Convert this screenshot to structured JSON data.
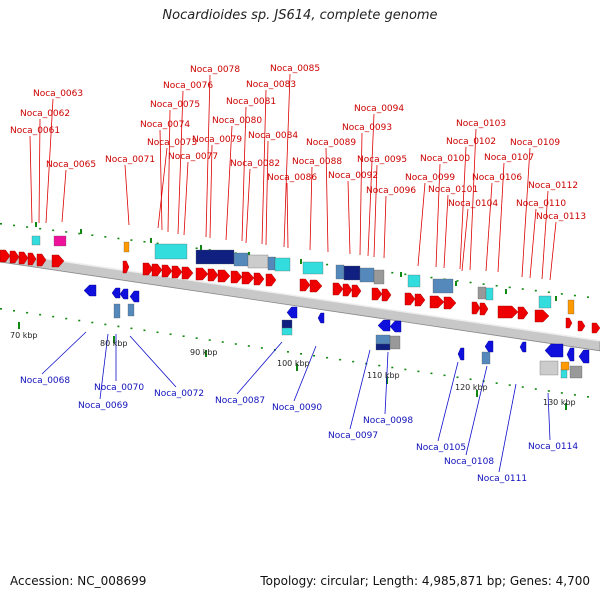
{
  "title": "Nocardioides sp. JS614, complete genome",
  "footer": {
    "accession": "Accession: NC_008699",
    "summary": "Topology: circular; Length: 4,985,871 bp; Genes: 4,700"
  },
  "colors": {
    "forward_gene": "#ee0000",
    "reverse_gene": "#1010dd",
    "backbone": "#c8c8c8",
    "tick": "#118811",
    "cyan_feature": "#33dddd",
    "navy_feature": "#102080",
    "steel_feature": "#5588bb",
    "magenta_feature": "#ee1199",
    "gray_feature": "#999999",
    "orange_feature": "#ff9900"
  },
  "scale_labels": [
    "70 kbp",
    "80 kbp",
    "90 kbp",
    "100 kbp",
    "110 kbp",
    "120 kbp",
    "130 kbp"
  ],
  "forward_genes": [
    "Noca_0061",
    "Noca_0062",
    "Noca_0063",
    "Noca_0065",
    "Noca_0071",
    "Noca_0073",
    "Noca_0074",
    "Noca_0075",
    "Noca_0076",
    "Noca_0077",
    "Noca_0078",
    "Noca_0079",
    "Noca_0080",
    "Noca_0081",
    "Noca_0082",
    "Noca_0083",
    "Noca_0084",
    "Noca_0085",
    "Noca_0086",
    "Noca_0088",
    "Noca_0089",
    "Noca_0092",
    "Noca_0093",
    "Noca_0094",
    "Noca_0095",
    "Noca_0096",
    "Noca_0099",
    "Noca_0100",
    "Noca_0101",
    "Noca_0102",
    "Noca_0103",
    "Noca_0104",
    "Noca_0106",
    "Noca_0107",
    "Noca_0109",
    "Noca_0110",
    "Noca_0112",
    "Noca_0113"
  ],
  "reverse_genes": [
    "Noca_0068",
    "Noca_0069",
    "Noca_0070",
    "Noca_0072",
    "Noca_0087",
    "Noca_0090",
    "Noca_0097",
    "Noca_0098",
    "Noca_0105",
    "Noca_0108",
    "Noca_0111",
    "Noca_0114"
  ]
}
